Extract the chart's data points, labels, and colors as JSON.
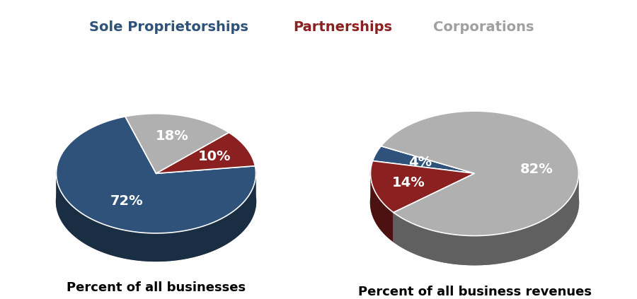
{
  "chart1": {
    "title": "Percent of all businesses",
    "values": [
      72,
      10,
      18
    ],
    "labels": [
      "72%",
      "10%",
      "18%"
    ],
    "colors": [
      "#2E527A",
      "#8B2020",
      "#B0B0B0"
    ],
    "shadow_colors": [
      "#1A2F4A",
      "#5A1010",
      "#787878"
    ],
    "startangle": 108,
    "label_offsets": [
      0.55,
      0.65,
      0.65
    ]
  },
  "chart2": {
    "title": "Percent of all business revenues",
    "values": [
      4,
      14,
      82
    ],
    "labels": [
      "4%",
      "14%",
      "82%"
    ],
    "colors": [
      "#2E527A",
      "#8B2020",
      "#B0B0B0"
    ],
    "shadow_colors": [
      "#1A2F4A",
      "#5A1010",
      "#787878"
    ],
    "startangle": 154,
    "label_offsets": [
      0.55,
      0.65,
      0.6
    ]
  },
  "legend_labels": [
    "Sole Proprietorships",
    "Partnerships",
    "Corporations"
  ],
  "legend_colors": [
    "#2E527A",
    "#8B2020",
    "#A0A0A0"
  ],
  "label_fontsize": 14,
  "title_fontsize": 13,
  "legend_fontsize": 14,
  "sx": 1.0,
  "sy": 0.6,
  "depth": 0.28
}
